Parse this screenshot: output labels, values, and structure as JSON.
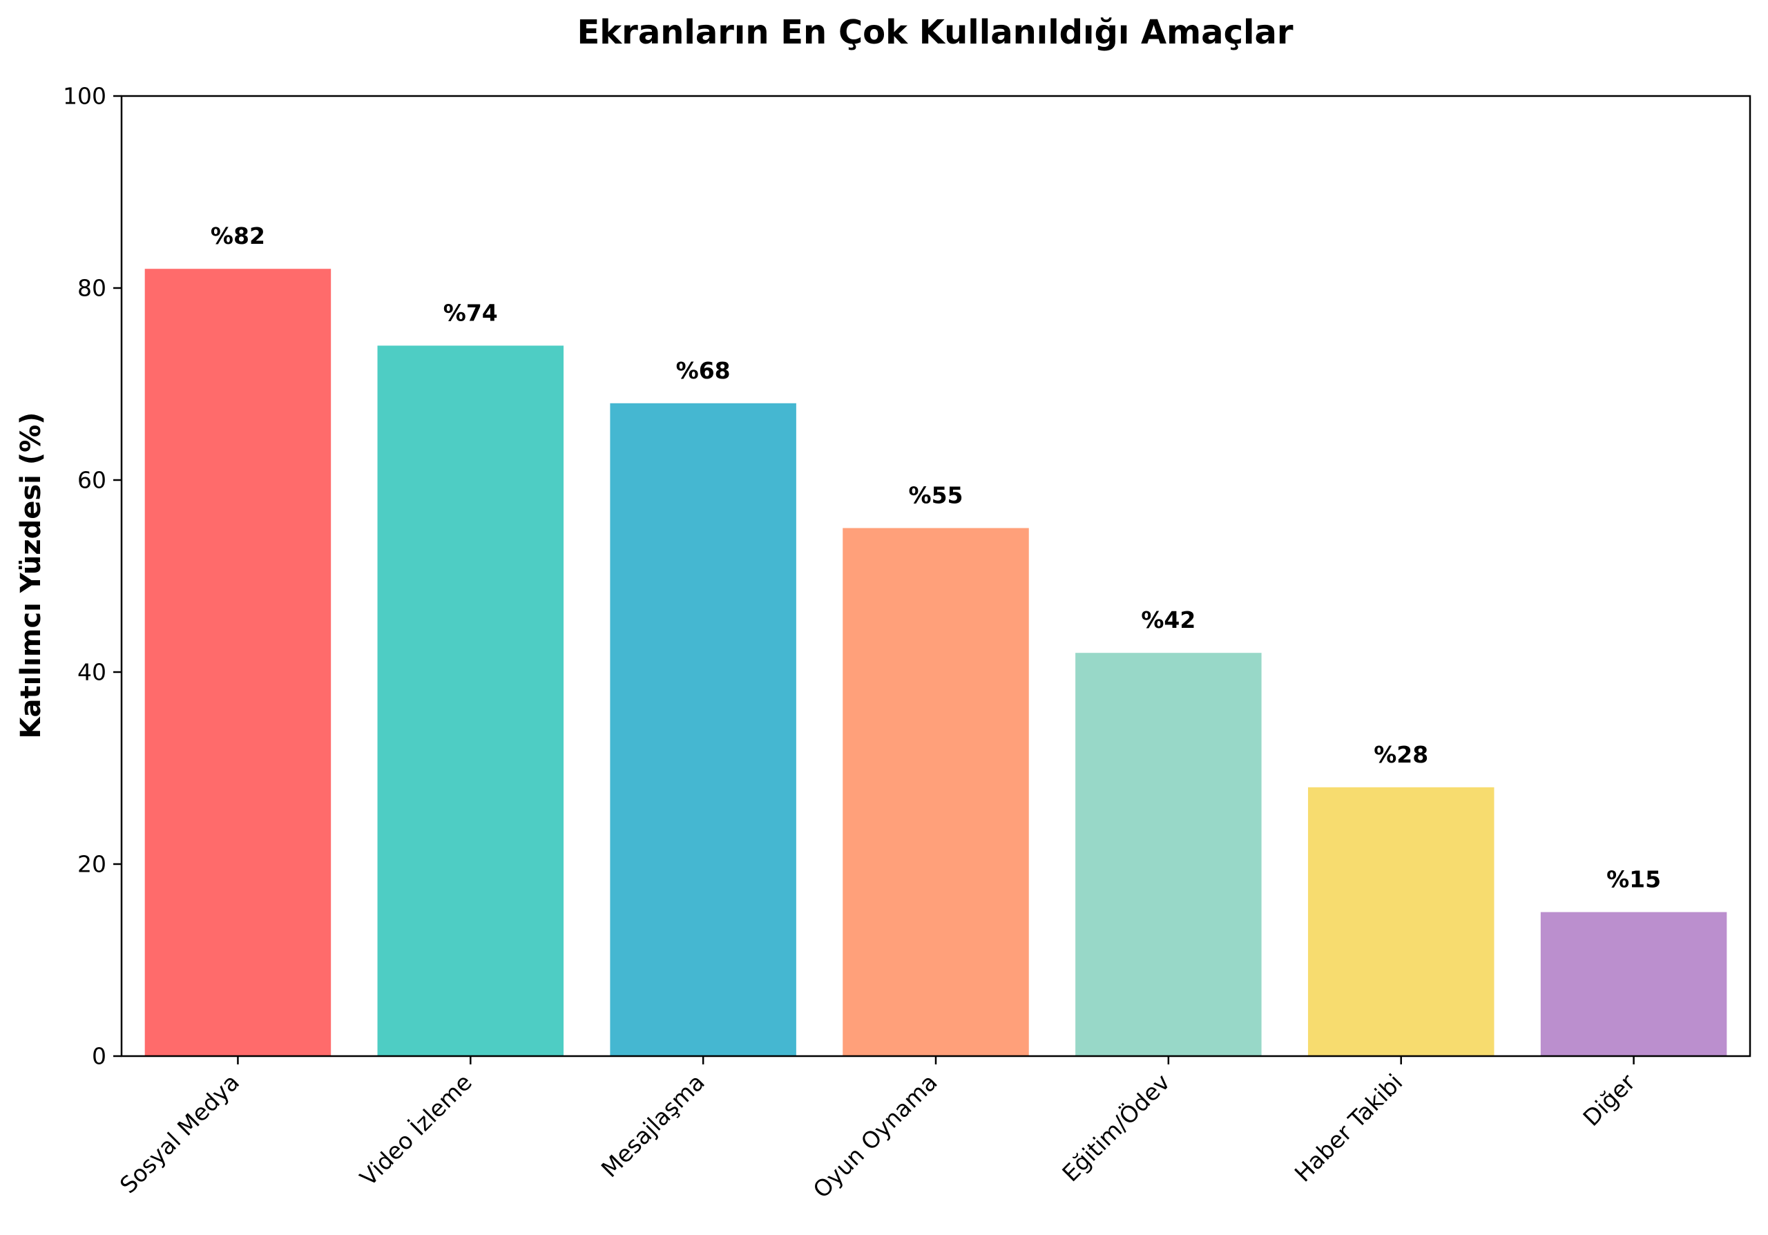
{
  "chart_data": {
    "type": "bar",
    "title": "Ekranların En Çok Kullanıldığı Amaçlar",
    "xlabel": "",
    "ylabel": "Katılımcı Yüzdesi (%)",
    "ylim": [
      0,
      100
    ],
    "yticks": [
      0,
      20,
      40,
      60,
      80,
      100
    ],
    "categories": [
      "Sosyal Medya",
      "Video İzleme",
      "Mesajlaşma",
      "Oyun Oynama",
      "Eğitim/Ödev",
      "Haber Takibi",
      "Diğer"
    ],
    "values": [
      82,
      74,
      68,
      55,
      42,
      28,
      15
    ],
    "value_labels": [
      "%82",
      "%74",
      "%68",
      "%55",
      "%42",
      "%28",
      "%15"
    ],
    "colors": [
      "#FF6B6B",
      "#4ECDC4",
      "#45B7D1",
      "#FFA07A",
      "#98D8C8",
      "#F7DC6F",
      "#BB8FCE"
    ],
    "grid": false,
    "legend": "none"
  }
}
